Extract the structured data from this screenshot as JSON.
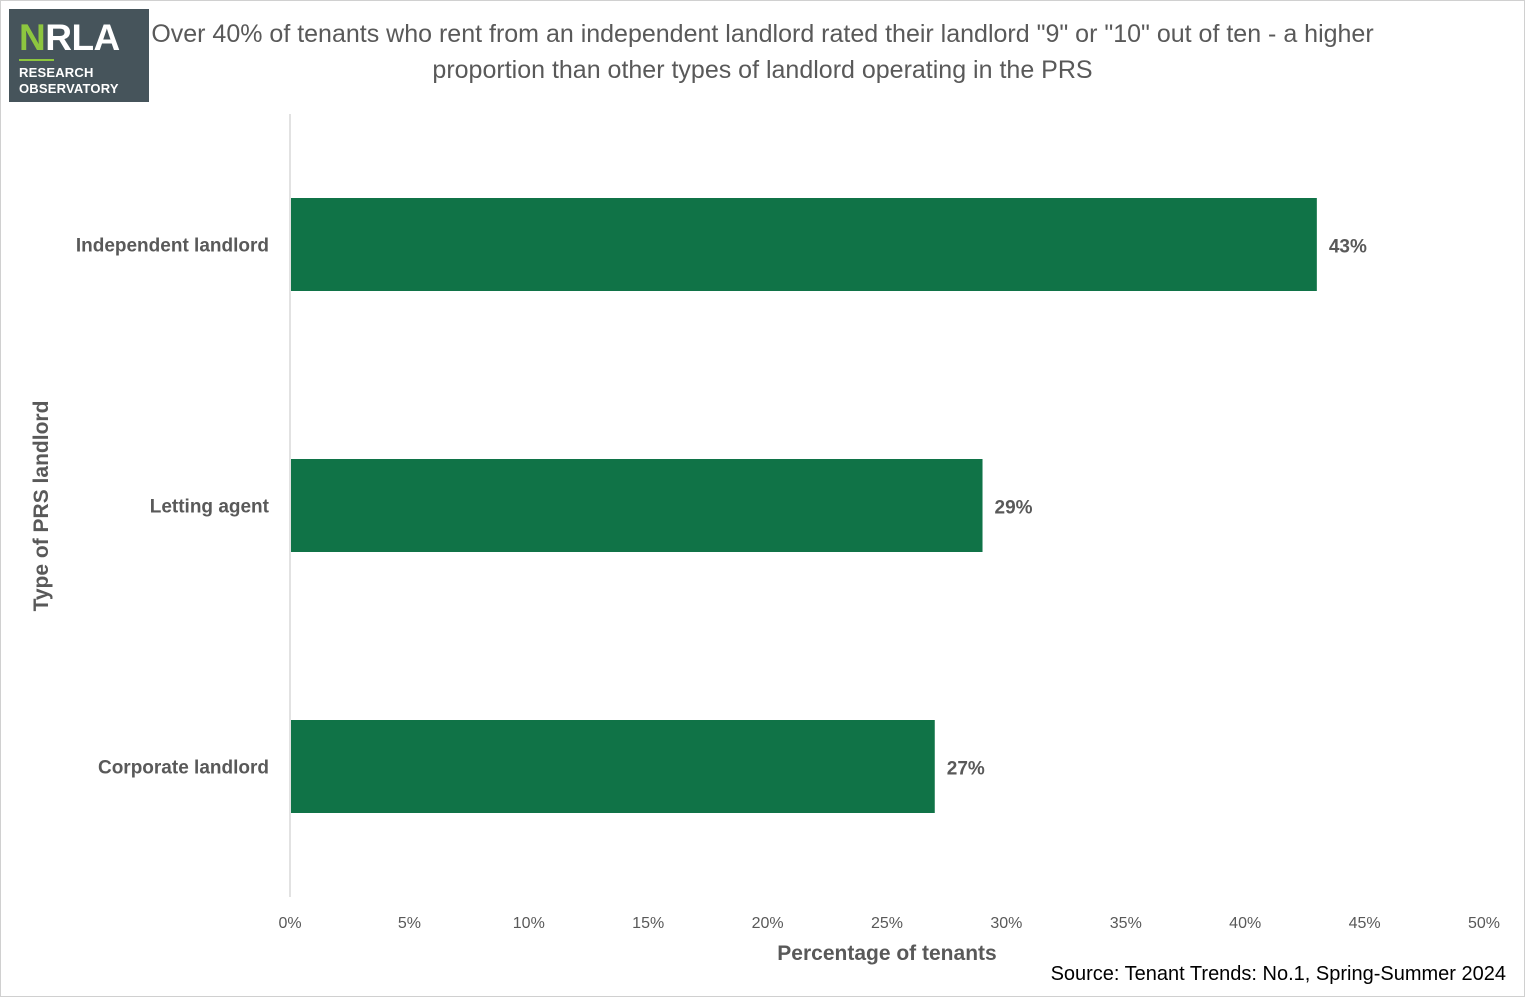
{
  "logo": {
    "main_prefix": "N",
    "main_rest": "RLA",
    "line1": "RESEARCH",
    "line2": "OBSERVATORY"
  },
  "source": "Source: Tenant Trends: No.1, Spring-Summer 2024",
  "colors": {
    "bar": "#107347",
    "text": "#595959",
    "axis": "#d9d9d9",
    "logo_bg": "#46545b",
    "logo_accent": "#8dc63f"
  },
  "chart_data": {
    "type": "bar",
    "orientation": "horizontal",
    "title": "Over 40% of tenants who rent from an independent landlord rated their landlord \"9\" or \"10\" out of ten - a higher proportion than other types of landlord operating in the PRS",
    "xlabel": "Percentage of tenants",
    "ylabel": "Type of PRS landlord",
    "categories": [
      "Independent landlord",
      "Letting agent",
      "Corporate landlord"
    ],
    "values": [
      43,
      29,
      27
    ],
    "data_labels": [
      "43%",
      "29%",
      "27%"
    ],
    "xlim": [
      0,
      50
    ],
    "xticks": [
      0,
      5,
      10,
      15,
      20,
      25,
      30,
      35,
      40,
      45,
      50
    ],
    "xtick_labels": [
      "0%",
      "5%",
      "10%",
      "15%",
      "20%",
      "25%",
      "30%",
      "35%",
      "40%",
      "45%",
      "50%"
    ],
    "grid": false,
    "legend": "none"
  }
}
